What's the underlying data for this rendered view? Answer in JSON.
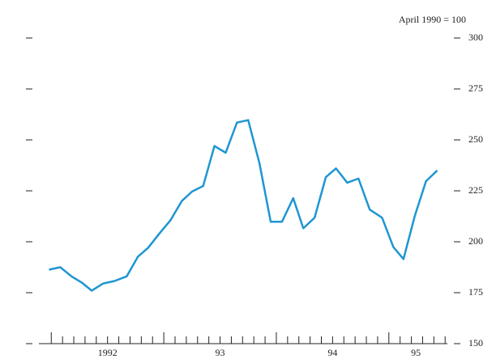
{
  "chart_data": {
    "type": "line",
    "annotation": "April 1990 = 100",
    "x": [
      1991.98,
      1992.08,
      1992.18,
      1992.27,
      1992.36,
      1992.46,
      1992.56,
      1992.67,
      1992.77,
      1992.86,
      1992.96,
      1993.06,
      1993.16,
      1993.25,
      1993.35,
      1993.45,
      1993.55,
      1993.65,
      1993.75,
      1993.85,
      1993.95,
      1994.05,
      1994.15,
      1994.24,
      1994.34,
      1994.44,
      1994.53,
      1994.63,
      1994.73,
      1994.83,
      1994.94,
      1995.04,
      1995.13,
      1995.23,
      1995.33,
      1995.43
    ],
    "series": [
      {
        "color": "#1e96d2",
        "values": [
          186.3,
          187.5,
          183,
          180,
          176,
          179.5,
          180.7,
          183,
          192.7,
          197,
          204,
          210.6,
          220,
          224.6,
          227.4,
          247,
          243.7,
          258.5,
          259.7,
          238.5,
          209.8,
          209.8,
          221.4,
          206.6,
          211.8,
          231.7,
          236,
          229,
          231,
          215.8,
          211.8,
          197.4,
          191.5,
          212.6,
          229.7,
          235
        ]
      }
    ],
    "xlim": [
      1991.89,
      1995.52
    ],
    "xticks": [
      1992,
      1993,
      1994,
      1995
    ],
    "xticks_minor": [
      1992.1,
      1992.2,
      1992.3,
      1992.4,
      1992.5,
      1992.6,
      1992.7,
      1992.8,
      1992.9,
      1993.1,
      1993.2,
      1993.3,
      1993.4,
      1993.5,
      1993.6,
      1993.7,
      1993.8,
      1993.9,
      1994.1,
      1994.2,
      1994.3,
      1994.4,
      1994.5,
      1994.6,
      1994.7,
      1994.8,
      1994.9,
      1995.1,
      1995.2,
      1995.3,
      1995.4,
      1995.5
    ],
    "year_labels": [
      {
        "value": 1992.5,
        "label": "1992"
      },
      {
        "value": 1993.5,
        "label": "93"
      },
      {
        "value": 1994.5,
        "label": "94"
      },
      {
        "value": 1995.24,
        "label": "95"
      }
    ],
    "ylim": [
      150,
      300
    ],
    "yticks": [
      150,
      175,
      200,
      225,
      250,
      275,
      300
    ]
  }
}
